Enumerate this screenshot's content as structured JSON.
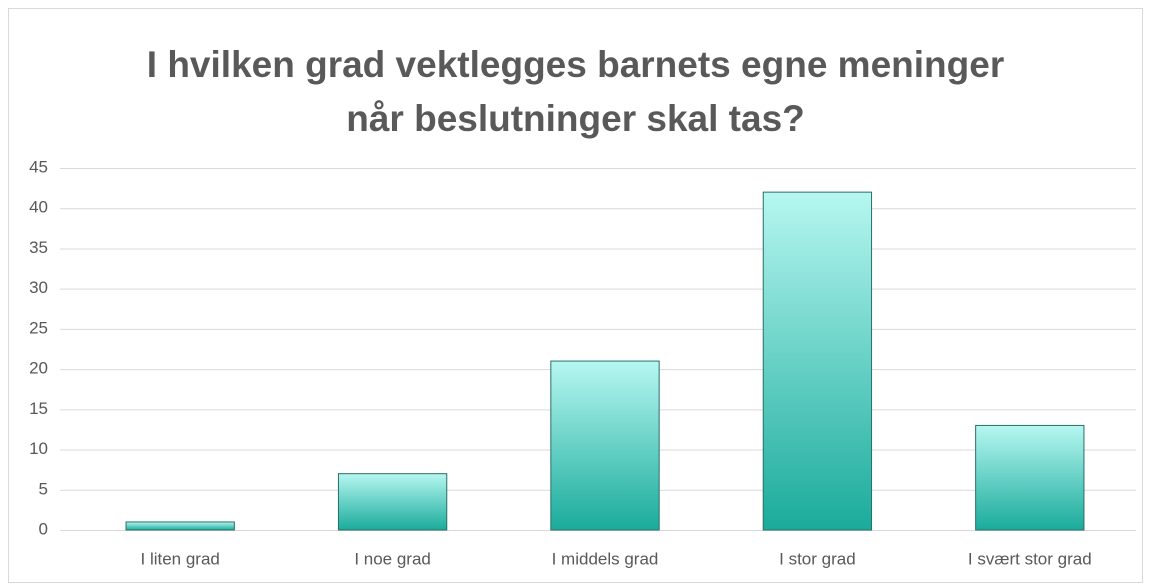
{
  "chart_data": {
    "type": "bar",
    "title": "I hvilken grad vektlegges barnets egne meninger når beslutninger skal tas?",
    "categories": [
      "I liten grad",
      "I noe grad",
      "I middels grad",
      "I stor grad",
      "I svært stor grad"
    ],
    "values": [
      1,
      7,
      21,
      42,
      13
    ],
    "color": "#1aab9b",
    "ylim": [
      0,
      45
    ],
    "yticks": [
      0,
      5,
      10,
      15,
      20,
      25,
      30,
      35,
      40,
      45
    ],
    "grid": true
  }
}
